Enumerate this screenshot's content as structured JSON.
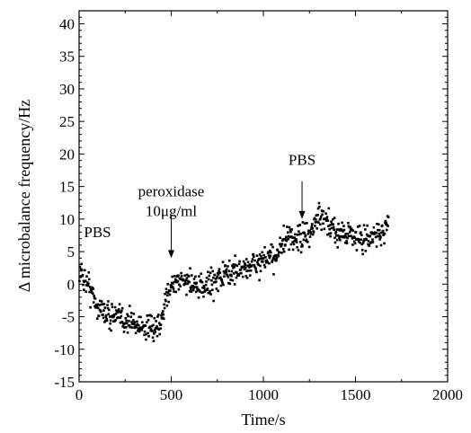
{
  "chart_data": {
    "type": "scatter",
    "title": "",
    "xlabel": "Time/s",
    "ylabel": "Δ microbalance frequency/Hz",
    "xlim": [
      0,
      2000
    ],
    "ylim": [
      -15,
      42
    ],
    "xticks": [
      0,
      500,
      1000,
      1500,
      2000
    ],
    "xtick_labels": [
      "0",
      "500",
      "1000",
      "1500",
      "2000"
    ],
    "yticks": [
      -15,
      -10,
      -5,
      0,
      5,
      10,
      15,
      20,
      25,
      30,
      35,
      40
    ],
    "ytick_labels": [
      "-15",
      "-10",
      "-5",
      "0",
      "5",
      "10",
      "15",
      "20",
      "25",
      "30",
      "35",
      "40"
    ],
    "grid": false,
    "legend": "none",
    "marker_color": "#000000",
    "trend_points": [
      {
        "x": 0,
        "y": 2
      },
      {
        "x": 50,
        "y": 0
      },
      {
        "x": 100,
        "y": -3.5
      },
      {
        "x": 150,
        "y": -4.5
      },
      {
        "x": 200,
        "y": -5
      },
      {
        "x": 250,
        "y": -5.5
      },
      {
        "x": 300,
        "y": -6
      },
      {
        "x": 350,
        "y": -6.5
      },
      {
        "x": 400,
        "y": -7
      },
      {
        "x": 440,
        "y": -7
      },
      {
        "x": 470,
        "y": -2
      },
      {
        "x": 500,
        "y": 0
      },
      {
        "x": 550,
        "y": 0.5
      },
      {
        "x": 600,
        "y": 0.5
      },
      {
        "x": 650,
        "y": -1
      },
      {
        "x": 700,
        "y": 0
      },
      {
        "x": 750,
        "y": 1
      },
      {
        "x": 800,
        "y": 1.5
      },
      {
        "x": 850,
        "y": 2
      },
      {
        "x": 900,
        "y": 2.5
      },
      {
        "x": 950,
        "y": 3
      },
      {
        "x": 1000,
        "y": 3.5
      },
      {
        "x": 1050,
        "y": 4
      },
      {
        "x": 1100,
        "y": 6
      },
      {
        "x": 1150,
        "y": 7
      },
      {
        "x": 1200,
        "y": 7
      },
      {
        "x": 1250,
        "y": 7.5
      },
      {
        "x": 1300,
        "y": 10.5
      },
      {
        "x": 1350,
        "y": 9
      },
      {
        "x": 1400,
        "y": 8
      },
      {
        "x": 1450,
        "y": 8
      },
      {
        "x": 1500,
        "y": 7.5
      },
      {
        "x": 1550,
        "y": 6.5
      },
      {
        "x": 1600,
        "y": 7.5
      },
      {
        "x": 1650,
        "y": 8
      },
      {
        "x": 1680,
        "y": 10
      }
    ],
    "annotations": [
      {
        "text": "PBS",
        "x": 100,
        "y": 7.2
      },
      {
        "text": "peroxidase",
        "line2": "10μg/ml",
        "x": 500,
        "y": 13.5
      },
      {
        "text": "PBS",
        "x": 1210,
        "y": 18.3
      }
    ],
    "arrows": [
      {
        "x": 500,
        "y_from": 10.6,
        "y_to": 4
      },
      {
        "x": 1210,
        "y_from": 15.8,
        "y_to": 10
      }
    ]
  }
}
